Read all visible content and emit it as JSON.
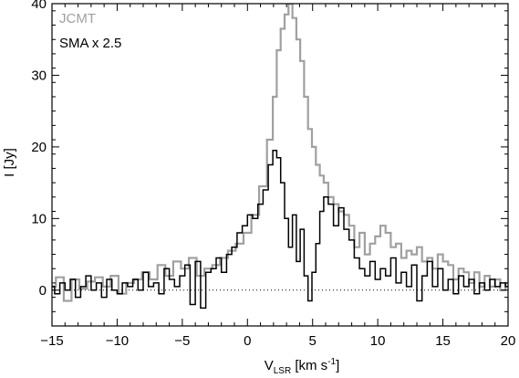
{
  "chart_data": {
    "type": "line",
    "title": "",
    "xlabel": {
      "main": "V",
      "sub": "LSR",
      "rest": " [km s",
      "sup": "-1",
      "close": "]"
    },
    "ylabel": "I [Jy]",
    "xlim": [
      -15,
      20
    ],
    "ylim": [
      -5,
      40
    ],
    "x_ticks": [
      -15,
      -10,
      -5,
      0,
      5,
      10,
      15,
      20
    ],
    "x_tick_labels": [
      "−15",
      "−10",
      "−5",
      "0",
      "5",
      "10",
      "15",
      "20"
    ],
    "y_ticks": [
      0,
      10,
      20,
      30,
      40
    ],
    "y_tick_labels": [
      "0",
      "10",
      "20",
      "30",
      "40"
    ],
    "grid": false,
    "legend_position": "top-left",
    "zero_line": {
      "y": 0,
      "style": "dotted"
    },
    "series": [
      {
        "name": "JCMT",
        "color": "#a0a0a0",
        "style": "histogram",
        "points": [
          [
            -15.0,
            0.5
          ],
          [
            -14.4,
            1.8
          ],
          [
            -13.8,
            -1.5
          ],
          [
            -13.2,
            1.5
          ],
          [
            -12.6,
            0.2
          ],
          [
            -12.0,
            1.2
          ],
          [
            -11.4,
            1.8
          ],
          [
            -10.8,
            0.5
          ],
          [
            -10.2,
            2.0
          ],
          [
            -9.6,
            -0.5
          ],
          [
            -9.0,
            1.0
          ],
          [
            -8.4,
            1.5
          ],
          [
            -7.8,
            2.5
          ],
          [
            -7.2,
            1.5
          ],
          [
            -6.6,
            3.5
          ],
          [
            -6.0,
            2.0
          ],
          [
            -5.4,
            4.0
          ],
          [
            -4.8,
            3.0
          ],
          [
            -4.2,
            4.5
          ],
          [
            -3.6,
            2.0
          ],
          [
            -3.0,
            3.0
          ],
          [
            -2.4,
            3.5
          ],
          [
            -1.8,
            4.5
          ],
          [
            -1.2,
            5.5
          ],
          [
            -0.6,
            6.5
          ],
          [
            0.0,
            8.0
          ],
          [
            0.6,
            10.5
          ],
          [
            1.2,
            14.5
          ],
          [
            1.8,
            21.0
          ],
          [
            2.1,
            27.0
          ],
          [
            2.4,
            33.5
          ],
          [
            2.7,
            36.5
          ],
          [
            3.0,
            38.5
          ],
          [
            3.3,
            40.0
          ],
          [
            3.6,
            38.0
          ],
          [
            3.9,
            35.0
          ],
          [
            4.2,
            32.0
          ],
          [
            4.5,
            27.0
          ],
          [
            4.8,
            22.5
          ],
          [
            5.1,
            20.0
          ],
          [
            5.4,
            17.5
          ],
          [
            5.7,
            16.0
          ],
          [
            6.0,
            15.0
          ],
          [
            6.4,
            13.0
          ],
          [
            6.8,
            12.0
          ],
          [
            7.2,
            11.0
          ],
          [
            7.6,
            10.5
          ],
          [
            8.0,
            9.0
          ],
          [
            8.4,
            6.0
          ],
          [
            8.8,
            8.0
          ],
          [
            9.2,
            5.0
          ],
          [
            9.6,
            6.5
          ],
          [
            10.0,
            7.5
          ],
          [
            10.4,
            9.0
          ],
          [
            10.8,
            8.0
          ],
          [
            11.2,
            6.0
          ],
          [
            11.6,
            6.5
          ],
          [
            12.0,
            4.5
          ],
          [
            12.4,
            5.5
          ],
          [
            12.8,
            5.0
          ],
          [
            13.2,
            6.0
          ],
          [
            13.6,
            4.0
          ],
          [
            14.0,
            4.5
          ],
          [
            14.4,
            3.0
          ],
          [
            14.8,
            5.0
          ],
          [
            15.2,
            4.0
          ],
          [
            15.6,
            3.5
          ],
          [
            16.0,
            1.5
          ],
          [
            16.4,
            3.0
          ],
          [
            16.8,
            2.5
          ],
          [
            17.2,
            1.0
          ],
          [
            17.6,
            2.5
          ],
          [
            18.0,
            0.5
          ],
          [
            18.4,
            2.0
          ],
          [
            18.8,
            0.5
          ],
          [
            19.2,
            1.5
          ],
          [
            19.6,
            0.0
          ],
          [
            20.0,
            1.0
          ]
        ]
      },
      {
        "name": "SMA x 2.5",
        "color": "#000000",
        "style": "histogram",
        "points": [
          [
            -15.0,
            0.5
          ],
          [
            -14.6,
            -0.5
          ],
          [
            -14.2,
            1.0
          ],
          [
            -13.8,
            0.0
          ],
          [
            -13.4,
            1.5
          ],
          [
            -13.0,
            -1.0
          ],
          [
            -12.6,
            0.5
          ],
          [
            -12.2,
            2.0
          ],
          [
            -11.8,
            0.0
          ],
          [
            -11.4,
            1.0
          ],
          [
            -11.0,
            -1.0
          ],
          [
            -10.6,
            1.5
          ],
          [
            -10.2,
            0.0
          ],
          [
            -9.8,
            -0.5
          ],
          [
            -9.4,
            1.0
          ],
          [
            -9.0,
            0.5
          ],
          [
            -8.6,
            1.5
          ],
          [
            -8.2,
            0.0
          ],
          [
            -7.8,
            2.5
          ],
          [
            -7.4,
            0.5
          ],
          [
            -7.0,
            1.0
          ],
          [
            -6.6,
            -0.5
          ],
          [
            -6.2,
            3.0
          ],
          [
            -5.8,
            1.5
          ],
          [
            -5.4,
            0.5
          ],
          [
            -5.0,
            2.0
          ],
          [
            -4.6,
            3.5
          ],
          [
            -4.2,
            -2.0
          ],
          [
            -3.8,
            4.0
          ],
          [
            -3.4,
            -2.5
          ],
          [
            -3.0,
            2.5
          ],
          [
            -2.6,
            3.0
          ],
          [
            -2.2,
            4.5
          ],
          [
            -1.8,
            2.5
          ],
          [
            -1.4,
            5.0
          ],
          [
            -1.0,
            6.0
          ],
          [
            -0.6,
            8.0
          ],
          [
            -0.2,
            9.0
          ],
          [
            0.2,
            10.5
          ],
          [
            0.6,
            10.0
          ],
          [
            1.0,
            12.0
          ],
          [
            1.4,
            14.0
          ],
          [
            1.8,
            17.5
          ],
          [
            2.1,
            19.5
          ],
          [
            2.4,
            18.5
          ],
          [
            2.7,
            15.0
          ],
          [
            3.0,
            10.0
          ],
          [
            3.3,
            6.0
          ],
          [
            3.6,
            10.5
          ],
          [
            3.9,
            4.0
          ],
          [
            4.2,
            8.5
          ],
          [
            4.5,
            2.0
          ],
          [
            4.8,
            -1.5
          ],
          [
            5.1,
            2.5
          ],
          [
            5.4,
            6.5
          ],
          [
            5.7,
            11.0
          ],
          [
            6.0,
            13.0
          ],
          [
            6.4,
            12.0
          ],
          [
            6.8,
            9.0
          ],
          [
            7.2,
            11.5
          ],
          [
            7.6,
            8.5
          ],
          [
            8.0,
            7.0
          ],
          [
            8.4,
            4.5
          ],
          [
            8.8,
            3.0
          ],
          [
            9.2,
            2.0
          ],
          [
            9.6,
            4.0
          ],
          [
            10.0,
            1.5
          ],
          [
            10.4,
            3.0
          ],
          [
            10.8,
            2.0
          ],
          [
            11.2,
            4.5
          ],
          [
            11.6,
            1.0
          ],
          [
            12.0,
            2.5
          ],
          [
            12.4,
            0.5
          ],
          [
            12.8,
            3.5
          ],
          [
            13.2,
            -1.5
          ],
          [
            13.6,
            2.0
          ],
          [
            14.0,
            4.0
          ],
          [
            14.4,
            0.5
          ],
          [
            14.8,
            3.0
          ],
          [
            15.2,
            0.0
          ],
          [
            15.6,
            1.5
          ],
          [
            16.0,
            -0.5
          ],
          [
            16.4,
            2.0
          ],
          [
            16.8,
            0.5
          ],
          [
            17.2,
            1.5
          ],
          [
            17.6,
            -0.5
          ],
          [
            18.0,
            1.0
          ],
          [
            18.4,
            0.0
          ],
          [
            18.8,
            1.5
          ],
          [
            19.2,
            0.5
          ],
          [
            19.6,
            1.0
          ],
          [
            20.0,
            0.5
          ]
        ]
      }
    ]
  }
}
